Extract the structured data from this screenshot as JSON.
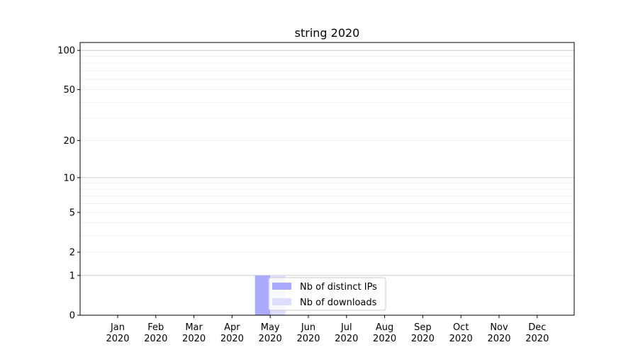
{
  "chart_data": {
    "type": "bar",
    "title": "string 2020",
    "xlabel": "",
    "ylabel": "",
    "y_scale": "symlog",
    "y_ticks": [
      0,
      1,
      2,
      5,
      10,
      20,
      50,
      100
    ],
    "y_tick_labels": [
      "0",
      "1",
      "2",
      "5",
      "10",
      "20",
      "50",
      "100"
    ],
    "x_tick_labels": [
      [
        "Jan",
        "2020"
      ],
      [
        "Feb",
        "2020"
      ],
      [
        "Mar",
        "2020"
      ],
      [
        "Apr",
        "2020"
      ],
      [
        "May",
        "2020"
      ],
      [
        "Jun",
        "2020"
      ],
      [
        "Jul",
        "2020"
      ],
      [
        "Aug",
        "2020"
      ],
      [
        "Sep",
        "2020"
      ],
      [
        "Oct",
        "2020"
      ],
      [
        "Nov",
        "2020"
      ],
      [
        "Dec",
        "2020"
      ]
    ],
    "grid": true,
    "legend_position": "lower-center",
    "series": [
      {
        "name": "Nb of distinct IPs",
        "color": "#aaaaff",
        "points": [
          {
            "x": "May 2020",
            "y": 1
          }
        ]
      },
      {
        "name": "Nb of downloads",
        "color": "#ddddff",
        "points": [
          {
            "x": "May 2020",
            "y": 1
          }
        ]
      }
    ]
  }
}
